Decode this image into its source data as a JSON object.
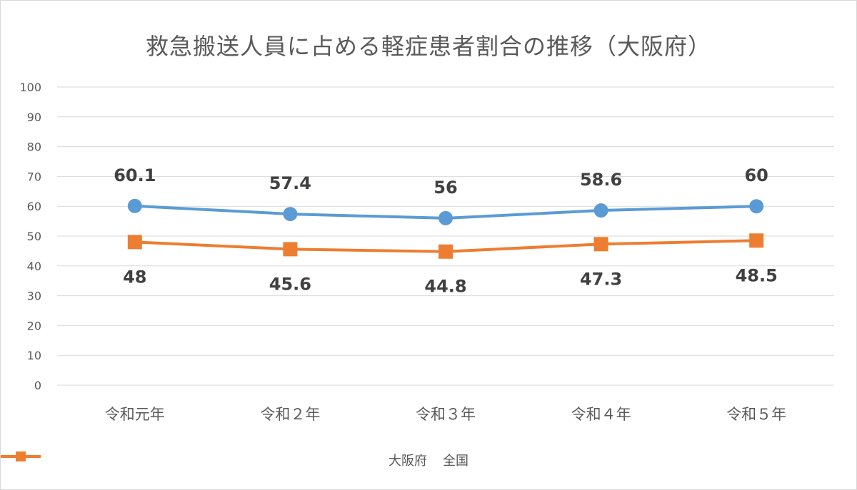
{
  "chart_data": {
    "type": "line",
    "title": "救急搬送人員に占める軽症患者割合の推移（大阪府）",
    "categories": [
      "令和元年",
      "令和２年",
      "令和３年",
      "令和４年",
      "令和５年"
    ],
    "series": [
      {
        "name": "大阪府",
        "values": [
          60.1,
          57.4,
          56,
          58.6,
          60
        ],
        "labels": [
          "60.1",
          "57.4",
          "56",
          "58.6",
          "60"
        ],
        "color": "#5b9bd5",
        "marker": "circle",
        "label_position": "above"
      },
      {
        "name": "全国",
        "values": [
          48,
          45.6,
          44.8,
          47.3,
          48.5
        ],
        "labels": [
          "48",
          "45.6",
          "44.8",
          "47.3",
          "48.5"
        ],
        "color": "#ed7d31",
        "marker": "square",
        "label_position": "below"
      }
    ],
    "ylim": [
      0,
      100
    ],
    "yticks": [
      0,
      10,
      20,
      30,
      40,
      50,
      60,
      70,
      80,
      90,
      100
    ],
    "ytick_labels": [
      "0",
      "10",
      "20",
      "30",
      "40",
      "50",
      "60",
      "70",
      "80",
      "90",
      "100"
    ],
    "grid": true,
    "legend_position": "bottom"
  }
}
